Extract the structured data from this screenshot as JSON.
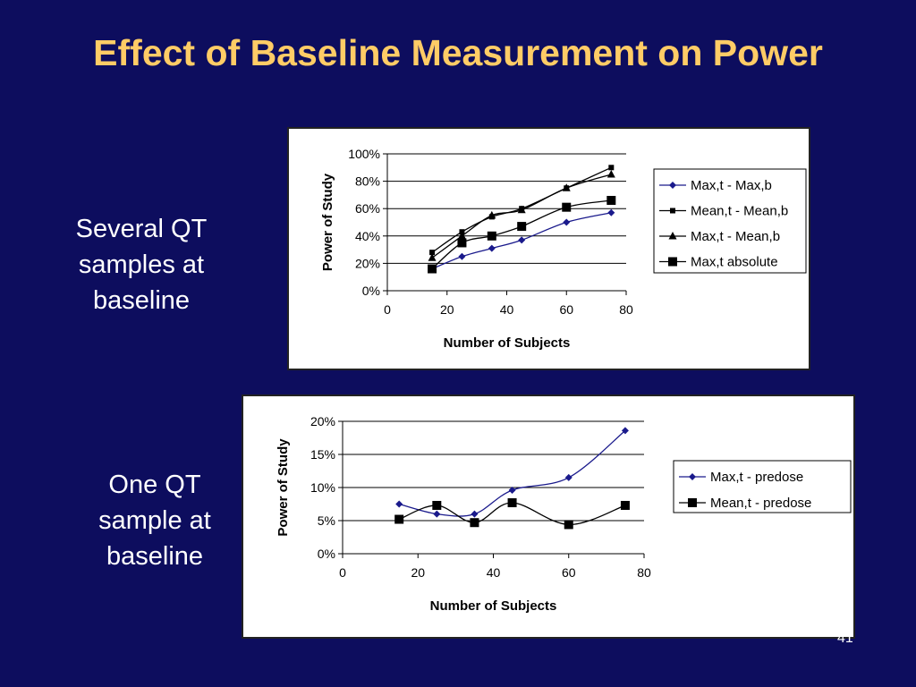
{
  "slide": {
    "title": "Effect of Baseline Measurement on Power",
    "label_top": [
      "Several QT",
      "samples at",
      "baseline"
    ],
    "label_bottom": [
      "One QT",
      "sample at",
      "baseline"
    ],
    "page_number": "41",
    "colors": {
      "background": "#0d0d5e",
      "title": "#ffcc66",
      "text": "#ffffff"
    }
  },
  "chart_data": [
    {
      "type": "line",
      "xlabel": "Number of Subjects",
      "ylabel": "Power of Study",
      "xlim": [
        0,
        80
      ],
      "ylim": [
        0,
        1
      ],
      "xticks": [
        "0",
        "20",
        "40",
        "60",
        "80"
      ],
      "yticks": [
        "0%",
        "20%",
        "40%",
        "60%",
        "80%",
        "100%"
      ],
      "grid": "horizontal",
      "legend": "right",
      "x": [
        15,
        25,
        35,
        45,
        60,
        75
      ],
      "series": [
        {
          "name": "Max,t - Max,b",
          "values": [
            0.16,
            0.25,
            0.31,
            0.37,
            0.5,
            0.57
          ],
          "color": "#1a1a8c",
          "marker": "diamond"
        },
        {
          "name": "Mean,t - Mean,b",
          "values": [
            0.28,
            0.43,
            0.54,
            0.6,
            0.75,
            0.9
          ],
          "color": "#000000",
          "marker": "square-small"
        },
        {
          "name": "Max,t - Mean,b",
          "values": [
            0.24,
            0.4,
            0.55,
            0.59,
            0.75,
            0.85
          ],
          "color": "#000000",
          "marker": "triangle"
        },
        {
          "name": "Max,t absolute",
          "values": [
            0.16,
            0.35,
            0.4,
            0.47,
            0.61,
            0.66
          ],
          "color": "#000000",
          "marker": "square"
        }
      ]
    },
    {
      "type": "line",
      "xlabel": "Number of Subjects",
      "ylabel": "Power of Study",
      "xlim": [
        0,
        80
      ],
      "ylim": [
        0,
        0.2
      ],
      "xticks": [
        "0",
        "20",
        "40",
        "60",
        "80"
      ],
      "yticks": [
        "0%",
        "5%",
        "10%",
        "15%",
        "20%"
      ],
      "grid": "horizontal",
      "legend": "right",
      "x": [
        15,
        25,
        35,
        45,
        60,
        75
      ],
      "series": [
        {
          "name": "Max,t - predose",
          "values": [
            0.075,
            0.06,
            0.06,
            0.096,
            0.115,
            0.186
          ],
          "color": "#1a1a8c",
          "marker": "diamond"
        },
        {
          "name": "Mean,t - predose",
          "values": [
            0.052,
            0.073,
            0.047,
            0.077,
            0.044,
            0.073
          ],
          "color": "#000000",
          "marker": "square"
        }
      ]
    }
  ]
}
